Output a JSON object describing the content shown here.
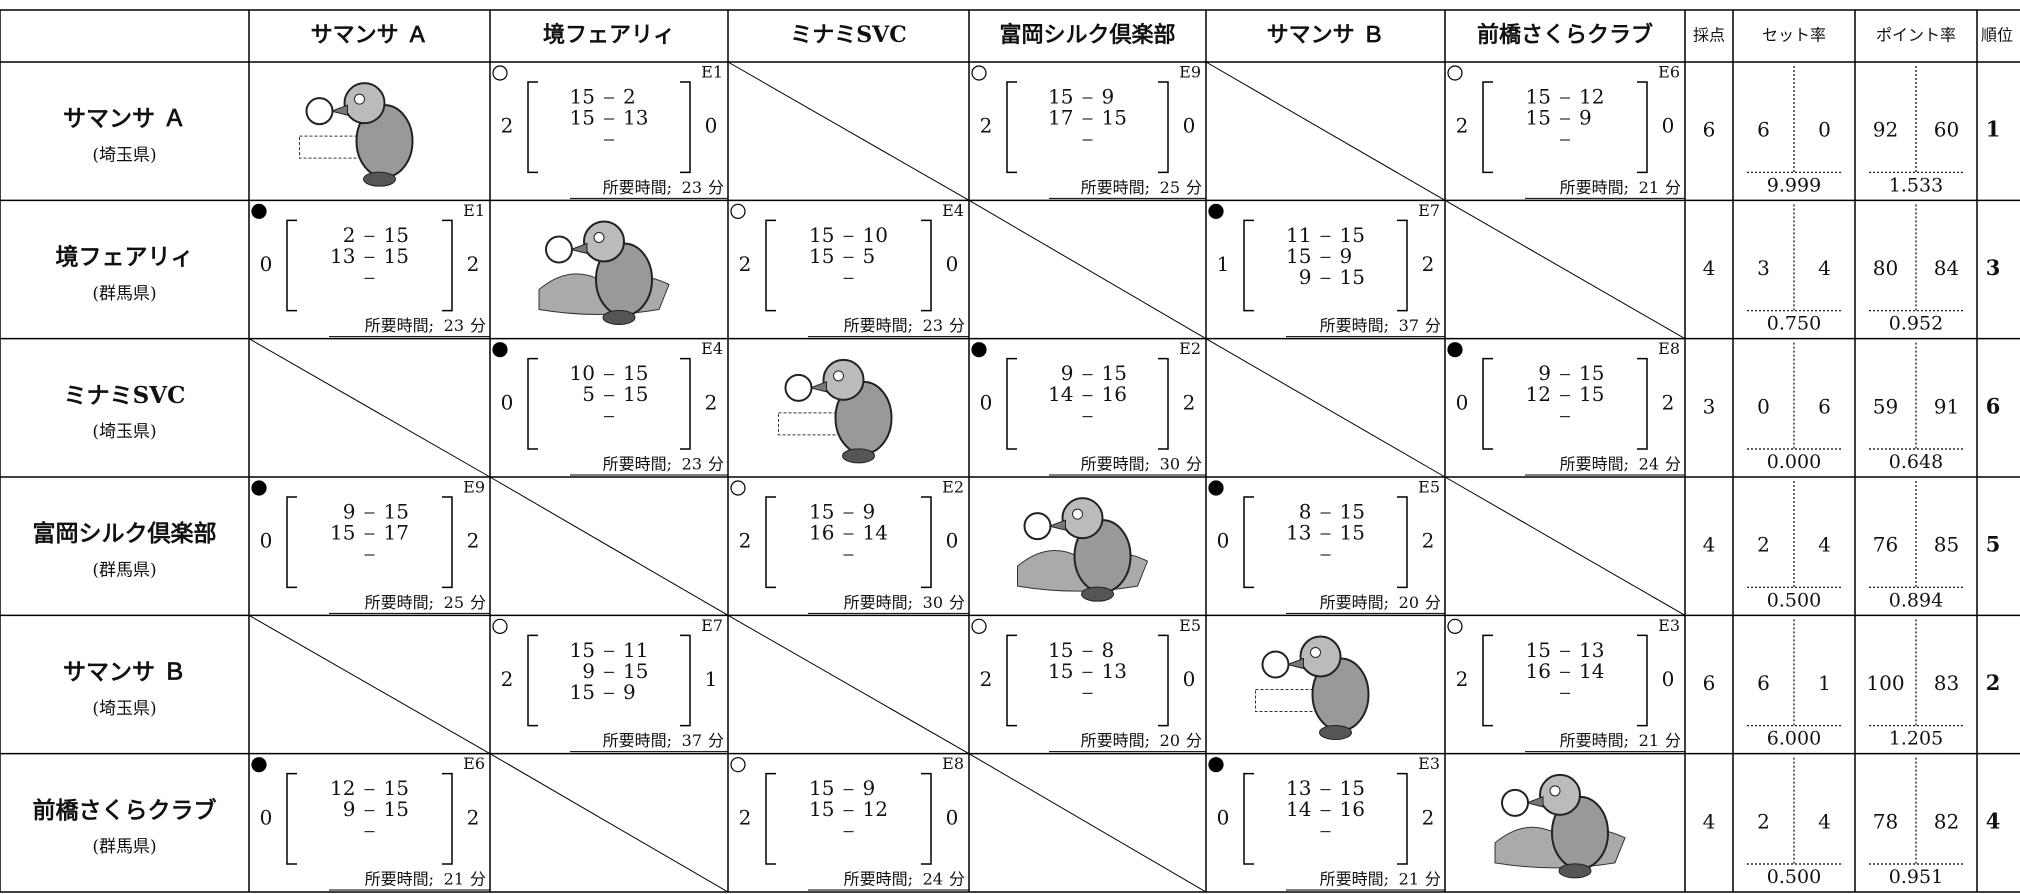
{
  "headers": {
    "score": "採点",
    "set_rate": "セット率",
    "point_rate": "ポイント率",
    "rank": "順位"
  },
  "time_label": "所要時間;",
  "time_unit": "分",
  "teams": [
    {
      "name": "サマンサ Ａ",
      "prefecture": "(埼玉県)"
    },
    {
      "name": "境フェアリィ",
      "prefecture": "(群馬県)"
    },
    {
      "name": "ミナミSVC",
      "prefecture": "(埼玉県)"
    },
    {
      "name": "富岡シルク倶楽部",
      "prefecture": "(群馬県)"
    },
    {
      "name": "サマンサ Ｂ",
      "prefecture": "(埼玉県)"
    },
    {
      "name": "前橋さくらクラブ",
      "prefecture": "(群馬県)"
    }
  ],
  "rows": [
    {
      "cells": [
        null,
        {
          "won": true,
          "id": "E1",
          "left": 2,
          "right": 0,
          "sets": [
            [
              15,
              2
            ],
            [
              15,
              13
            ]
          ],
          "time": 23
        },
        null,
        {
          "won": true,
          "id": "E9",
          "left": 2,
          "right": 0,
          "sets": [
            [
              15,
              9
            ],
            [
              17,
              15
            ]
          ],
          "time": 25
        },
        null,
        {
          "won": true,
          "id": "E6",
          "left": 2,
          "right": 0,
          "sets": [
            [
              15,
              12
            ],
            [
              15,
              9
            ]
          ],
          "time": 21
        }
      ],
      "score": 6,
      "sets_won": 6,
      "sets_lost": 0,
      "set_rate": "9.999",
      "points_for": 92,
      "points_against": 60,
      "point_rate": "1.533",
      "rank": 1
    },
    {
      "cells": [
        {
          "won": false,
          "id": "E1",
          "left": 0,
          "right": 2,
          "sets": [
            [
              2,
              15
            ],
            [
              13,
              15
            ]
          ],
          "time": 23
        },
        null,
        {
          "won": true,
          "id": "E4",
          "left": 2,
          "right": 0,
          "sets": [
            [
              15,
              10
            ],
            [
              15,
              5
            ]
          ],
          "time": 23
        },
        null,
        {
          "won": false,
          "id": "E7",
          "left": 1,
          "right": 2,
          "sets": [
            [
              11,
              15
            ],
            [
              15,
              9
            ],
            [
              9,
              15
            ]
          ],
          "time": 37
        },
        null
      ],
      "score": 4,
      "sets_won": 3,
      "sets_lost": 4,
      "set_rate": "0.750",
      "points_for": 80,
      "points_against": 84,
      "point_rate": "0.952",
      "rank": 3
    },
    {
      "cells": [
        null,
        {
          "won": false,
          "id": "E4",
          "left": 0,
          "right": 2,
          "sets": [
            [
              10,
              15
            ],
            [
              5,
              15
            ]
          ],
          "time": 23
        },
        null,
        {
          "won": false,
          "id": "E2",
          "left": 0,
          "right": 2,
          "sets": [
            [
              9,
              15
            ],
            [
              14,
              16
            ]
          ],
          "time": 30
        },
        null,
        {
          "won": false,
          "id": "E8",
          "left": 0,
          "right": 2,
          "sets": [
            [
              9,
              15
            ],
            [
              12,
              15
            ]
          ],
          "time": 24
        }
      ],
      "score": 3,
      "sets_won": 0,
      "sets_lost": 6,
      "set_rate": "0.000",
      "points_for": 59,
      "points_against": 91,
      "point_rate": "0.648",
      "rank": 6
    },
    {
      "cells": [
        {
          "won": false,
          "id": "E9",
          "left": 0,
          "right": 2,
          "sets": [
            [
              9,
              15
            ],
            [
              15,
              17
            ]
          ],
          "time": 25
        },
        null,
        {
          "won": true,
          "id": "E2",
          "left": 2,
          "right": 0,
          "sets": [
            [
              15,
              9
            ],
            [
              16,
              14
            ]
          ],
          "time": 30
        },
        null,
        {
          "won": false,
          "id": "E5",
          "left": 0,
          "right": 2,
          "sets": [
            [
              8,
              15
            ],
            [
              13,
              15
            ]
          ],
          "time": 20
        },
        null
      ],
      "score": 4,
      "sets_won": 2,
      "sets_lost": 4,
      "set_rate": "0.500",
      "points_for": 76,
      "points_against": 85,
      "point_rate": "0.894",
      "rank": 5
    },
    {
      "cells": [
        null,
        {
          "won": true,
          "id": "E7",
          "left": 2,
          "right": 1,
          "sets": [
            [
              15,
              11
            ],
            [
              9,
              15
            ],
            [
              15,
              9
            ]
          ],
          "time": 37
        },
        null,
        {
          "won": true,
          "id": "E5",
          "left": 2,
          "right": 0,
          "sets": [
            [
              15,
              8
            ],
            [
              15,
              13
            ]
          ],
          "time": 20
        },
        null,
        {
          "won": true,
          "id": "E3",
          "left": 2,
          "right": 0,
          "sets": [
            [
              15,
              13
            ],
            [
              16,
              14
            ]
          ],
          "time": 21
        }
      ],
      "score": 6,
      "sets_won": 6,
      "sets_lost": 1,
      "set_rate": "6.000",
      "points_for": 100,
      "points_against": 83,
      "point_rate": "1.205",
      "rank": 2
    },
    {
      "cells": [
        {
          "won": false,
          "id": "E6",
          "left": 0,
          "right": 2,
          "sets": [
            [
              12,
              15
            ],
            [
              9,
              15
            ]
          ],
          "time": 21
        },
        null,
        {
          "won": true,
          "id": "E8",
          "left": 2,
          "right": 0,
          "sets": [
            [
              15,
              9
            ],
            [
              15,
              12
            ]
          ],
          "time": 24
        },
        null,
        {
          "won": false,
          "id": "E3",
          "left": 0,
          "right": 2,
          "sets": [
            [
              13,
              15
            ],
            [
              14,
              16
            ]
          ],
          "time": 21
        },
        null
      ],
      "score": 4,
      "sets_won": 2,
      "sets_lost": 4,
      "set_rate": "0.500",
      "points_for": 78,
      "points_against": 82,
      "point_rate": "0.951",
      "rank": 4
    }
  ]
}
